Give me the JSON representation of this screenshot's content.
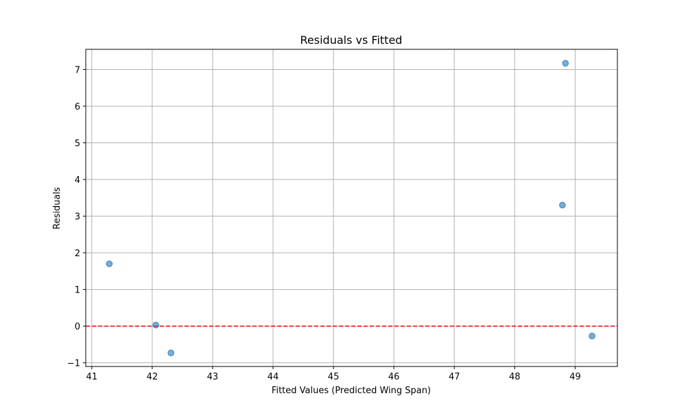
{
  "chart_data": {
    "type": "scatter",
    "title": "Residuals vs Fitted",
    "xlabel": "Fitted Values (Predicted Wing Span)",
    "ylabel": "Residuals",
    "xlim": [
      40.9,
      49.7
    ],
    "ylim": [
      -1.1,
      7.55
    ],
    "xticks": [
      41,
      42,
      43,
      44,
      45,
      46,
      47,
      48,
      49
    ],
    "yticks": [
      -1,
      0,
      1,
      2,
      3,
      4,
      5,
      6,
      7
    ],
    "xtick_labels": [
      "41",
      "42",
      "43",
      "44",
      "45",
      "46",
      "47",
      "48",
      "49"
    ],
    "ytick_labels": [
      "−1",
      "0",
      "1",
      "2",
      "3",
      "4",
      "5",
      "6",
      "7"
    ],
    "grid": true,
    "points": [
      {
        "x": 41.29,
        "y": 1.7
      },
      {
        "x": 42.06,
        "y": 0.03
      },
      {
        "x": 42.31,
        "y": -0.73
      },
      {
        "x": 48.79,
        "y": 3.3
      },
      {
        "x": 48.84,
        "y": 7.17
      },
      {
        "x": 49.28,
        "y": -0.27
      }
    ],
    "reference_line": {
      "y": 0,
      "style": "dashed",
      "color": "#ff0000"
    },
    "point_color": "#1f77b4",
    "point_alpha": 0.6
  }
}
